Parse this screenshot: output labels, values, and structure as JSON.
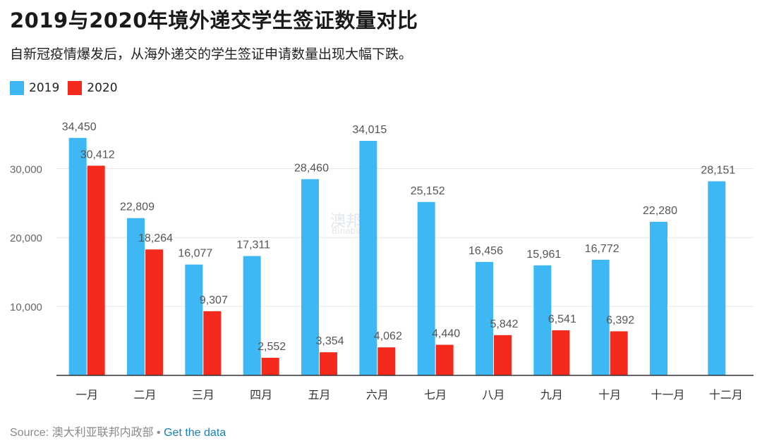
{
  "title": "2019与2020年境外递交学生签证数量对比",
  "subtitle": "自新冠疫情爆发后，从海外递交的学生签证申请数量出现大幅下跌。",
  "footer": {
    "source": "Source: 澳大利亚联邦内政部",
    "separator": " • ",
    "link": "Get the data"
  },
  "watermark": {
    "text": "澳邦达",
    "sub": "Binabiann"
  },
  "colors": {
    "2019": "#3db8f5",
    "2020": "#f52a1c",
    "grid": "#e6e6e6",
    "label": "#555555",
    "axis": "#333333"
  },
  "chart_data": {
    "type": "bar",
    "categories": [
      "一月",
      "二月",
      "三月",
      "四月",
      "五月",
      "六月",
      "七月",
      "八月",
      "九月",
      "十月",
      "十一月",
      "十二月"
    ],
    "series": [
      {
        "name": "2019",
        "values": [
          34450,
          22809,
          16077,
          17311,
          28460,
          34015,
          25152,
          16456,
          15961,
          16772,
          22280,
          28151
        ]
      },
      {
        "name": "2020",
        "values": [
          30412,
          18264,
          9307,
          2552,
          3354,
          4062,
          4440,
          5842,
          6541,
          6392,
          null,
          null
        ]
      }
    ],
    "yticks": [
      "10,000",
      "20,000",
      "30,000"
    ],
    "ytick_values": [
      10000,
      20000,
      30000
    ],
    "ylim": [
      0,
      38000
    ],
    "grid": true,
    "legend_position": "top-left"
  }
}
